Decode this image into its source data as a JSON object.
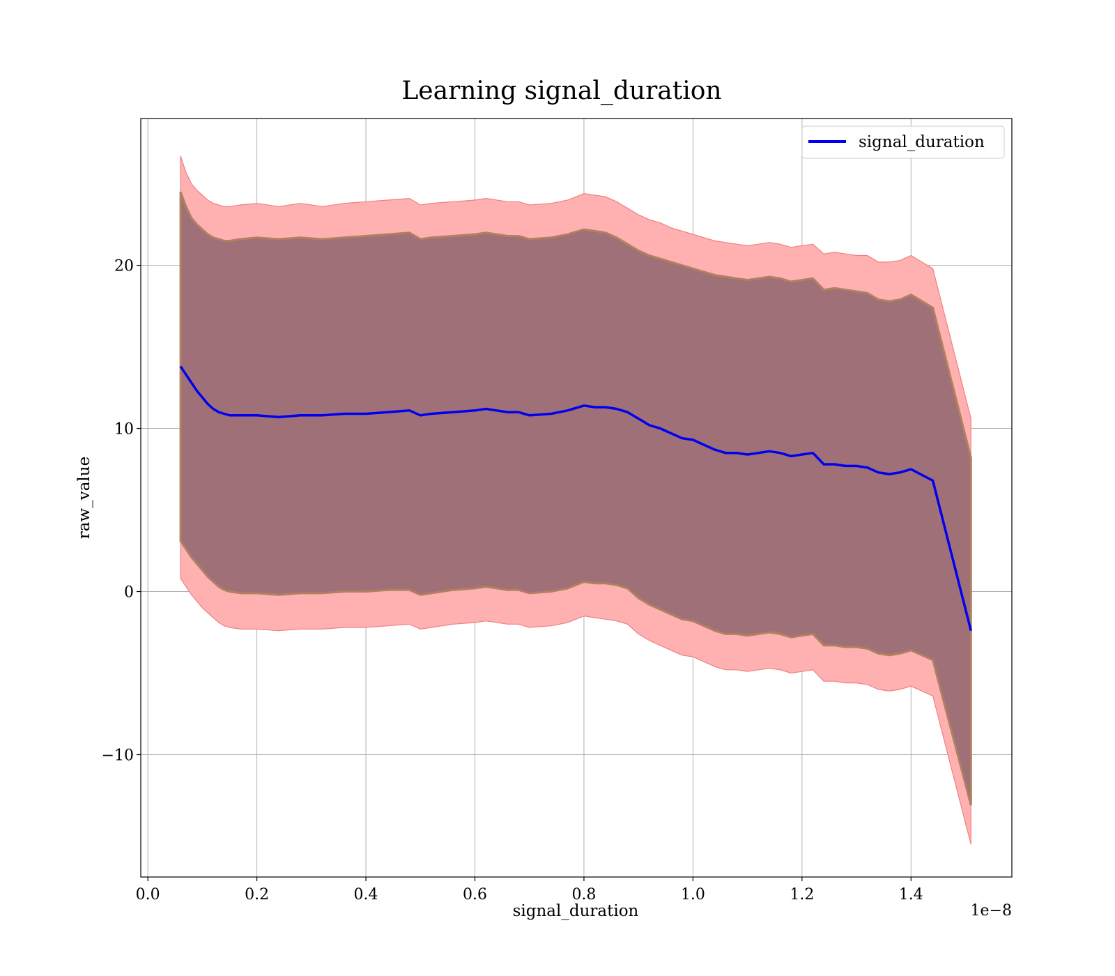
{
  "chart_data": {
    "type": "line",
    "title": "Learning signal_duration",
    "xlabel": "signal_duration",
    "ylabel": "raw_value",
    "x_offset_label": "1e−8",
    "xlim": [
      -0.013,
      1.585
    ],
    "ylim": [
      -17.5,
      29
    ],
    "x_ticks": [
      0.0,
      0.2,
      0.4,
      0.6,
      0.8,
      1.0,
      1.2,
      1.4
    ],
    "x_tick_labels": [
      "0.0",
      "0.2",
      "0.4",
      "0.6",
      "0.8",
      "1.0",
      "1.2",
      "1.4"
    ],
    "y_ticks": [
      -10,
      0,
      10,
      20
    ],
    "y_tick_labels": [
      "−10",
      "0",
      "10",
      "20"
    ],
    "grid": true,
    "legend_position": "top-right",
    "colors": {
      "line": "#0000ee",
      "outer_band": "#ffb0b0",
      "outer_band_edge": "#f08080",
      "inner_band": "#a07078",
      "inner_band_edge": "#b08060"
    },
    "series": [
      {
        "name": "signal_duration",
        "x": [
          0.06,
          0.07,
          0.08,
          0.09,
          0.1,
          0.11,
          0.12,
          0.13,
          0.14,
          0.15,
          0.17,
          0.2,
          0.24,
          0.28,
          0.32,
          0.36,
          0.4,
          0.44,
          0.48,
          0.5,
          0.52,
          0.56,
          0.6,
          0.62,
          0.66,
          0.68,
          0.7,
          0.74,
          0.77,
          0.8,
          0.82,
          0.84,
          0.86,
          0.88,
          0.9,
          0.92,
          0.94,
          0.96,
          0.98,
          1.0,
          1.02,
          1.04,
          1.06,
          1.08,
          1.1,
          1.12,
          1.14,
          1.16,
          1.18,
          1.2,
          1.22,
          1.24,
          1.26,
          1.28,
          1.3,
          1.32,
          1.34,
          1.36,
          1.38,
          1.4,
          1.44,
          1.51
        ],
        "y": [
          13.8,
          13.3,
          12.8,
          12.3,
          11.9,
          11.5,
          11.2,
          11.0,
          10.9,
          10.8,
          10.8,
          10.8,
          10.7,
          10.8,
          10.8,
          10.9,
          10.9,
          11.0,
          11.1,
          10.8,
          10.9,
          11.0,
          11.1,
          11.2,
          11.0,
          11.0,
          10.8,
          10.9,
          11.1,
          11.4,
          11.3,
          11.3,
          11.2,
          11.0,
          10.6,
          10.2,
          10.0,
          9.7,
          9.4,
          9.3,
          9.0,
          8.7,
          8.5,
          8.5,
          8.4,
          8.5,
          8.6,
          8.5,
          8.3,
          8.4,
          8.5,
          7.8,
          7.8,
          7.7,
          7.7,
          7.6,
          7.3,
          7.2,
          7.3,
          7.5,
          6.8,
          -2.4
        ],
        "inner_upper": [
          24.5,
          23.6,
          22.9,
          22.5,
          22.2,
          21.9,
          21.7,
          21.6,
          21.5,
          21.5,
          21.6,
          21.7,
          21.6,
          21.7,
          21.6,
          21.7,
          21.8,
          21.9,
          22.0,
          21.6,
          21.7,
          21.8,
          21.9,
          22.0,
          21.8,
          21.8,
          21.6,
          21.7,
          21.9,
          22.2,
          22.1,
          22.0,
          21.7,
          21.3,
          20.9,
          20.6,
          20.4,
          20.2,
          20.0,
          19.8,
          19.6,
          19.4,
          19.3,
          19.2,
          19.1,
          19.2,
          19.3,
          19.2,
          19.0,
          19.1,
          19.2,
          18.5,
          18.6,
          18.5,
          18.4,
          18.3,
          17.9,
          17.8,
          17.9,
          18.2,
          17.4,
          8.2
        ],
        "inner_lower": [
          3.1,
          2.6,
          2.1,
          1.7,
          1.3,
          0.9,
          0.6,
          0.3,
          0.1,
          0.0,
          -0.1,
          -0.1,
          -0.2,
          -0.1,
          -0.1,
          0.0,
          0.0,
          0.1,
          0.1,
          -0.2,
          -0.1,
          0.1,
          0.2,
          0.3,
          0.1,
          0.1,
          -0.1,
          0.0,
          0.2,
          0.6,
          0.5,
          0.5,
          0.4,
          0.2,
          -0.4,
          -0.8,
          -1.1,
          -1.4,
          -1.7,
          -1.8,
          -2.1,
          -2.4,
          -2.6,
          -2.6,
          -2.7,
          -2.6,
          -2.5,
          -2.6,
          -2.8,
          -2.7,
          -2.6,
          -3.3,
          -3.3,
          -3.4,
          -3.4,
          -3.5,
          -3.8,
          -3.9,
          -3.8,
          -3.6,
          -4.2,
          -13.1
        ],
        "outer_upper": [
          26.7,
          25.7,
          25.0,
          24.6,
          24.3,
          24.0,
          23.8,
          23.7,
          23.6,
          23.6,
          23.7,
          23.8,
          23.6,
          23.8,
          23.6,
          23.8,
          23.9,
          24.0,
          24.1,
          23.7,
          23.8,
          23.9,
          24.0,
          24.1,
          23.9,
          23.9,
          23.7,
          23.8,
          24.0,
          24.4,
          24.3,
          24.2,
          23.9,
          23.5,
          23.1,
          22.8,
          22.6,
          22.3,
          22.1,
          21.9,
          21.7,
          21.5,
          21.4,
          21.3,
          21.2,
          21.3,
          21.4,
          21.3,
          21.1,
          21.2,
          21.3,
          20.7,
          20.8,
          20.7,
          20.6,
          20.6,
          20.2,
          20.2,
          20.3,
          20.6,
          19.8,
          10.6
        ],
        "outer_lower": [
          0.8,
          0.3,
          -0.2,
          -0.6,
          -1.0,
          -1.3,
          -1.6,
          -1.9,
          -2.1,
          -2.2,
          -2.3,
          -2.3,
          -2.4,
          -2.3,
          -2.3,
          -2.2,
          -2.2,
          -2.1,
          -2.0,
          -2.3,
          -2.2,
          -2.0,
          -1.9,
          -1.8,
          -2.0,
          -2.0,
          -2.2,
          -2.1,
          -1.9,
          -1.5,
          -1.6,
          -1.7,
          -1.8,
          -2.0,
          -2.6,
          -3.0,
          -3.3,
          -3.6,
          -3.9,
          -4.0,
          -4.3,
          -4.6,
          -4.8,
          -4.8,
          -4.9,
          -4.8,
          -4.7,
          -4.8,
          -5.0,
          -4.9,
          -4.8,
          -5.5,
          -5.5,
          -5.6,
          -5.6,
          -5.7,
          -6.0,
          -6.1,
          -6.0,
          -5.8,
          -6.4,
          -15.5
        ]
      }
    ]
  }
}
